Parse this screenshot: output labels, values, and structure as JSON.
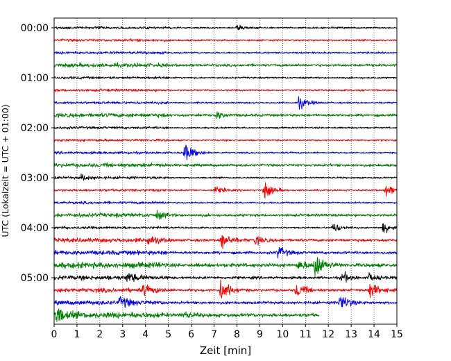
{
  "chart_data": {
    "type": "line",
    "title": "",
    "xlabel": "Zeit  [min]",
    "ylabel": "UTC (Lokalzeit = UTC + 01:00)",
    "xlim": [
      0,
      15
    ],
    "x_ticks": [
      "0",
      "1",
      "2",
      "3",
      "4",
      "5",
      "6",
      "7",
      "8",
      "9",
      "10",
      "11",
      "12",
      "13",
      "14",
      "15"
    ],
    "y_ticks": [
      "00:00",
      "01:00",
      "02:00",
      "03:00",
      "04:00",
      "05:00"
    ],
    "grid": "vertical dotted",
    "trace_interval_minutes": 15,
    "trace_colors": [
      "#000000",
      "#ff0000",
      "#0000ff",
      "#008000"
    ],
    "traces": [
      {
        "label": "00:00",
        "color": "#000000",
        "events": [
          {
            "t": 8.0,
            "amp": 3
          }
        ]
      },
      {
        "label": "00:15",
        "color": "#ff0000",
        "events": []
      },
      {
        "label": "00:30",
        "color": "#0000ff",
        "events": []
      },
      {
        "label": "00:45",
        "color": "#008000",
        "events": []
      },
      {
        "label": "01:00",
        "color": "#000000",
        "events": []
      },
      {
        "label": "01:15",
        "color": "#ff0000",
        "events": []
      },
      {
        "label": "01:30",
        "color": "#0000ff",
        "events": [
          {
            "t": 10.7,
            "amp": 8
          }
        ]
      },
      {
        "label": "01:45",
        "color": "#008000",
        "events": [
          {
            "t": 7.1,
            "amp": 4
          }
        ]
      },
      {
        "label": "02:00",
        "color": "#000000",
        "events": []
      },
      {
        "label": "02:15",
        "color": "#ff0000",
        "events": []
      },
      {
        "label": "02:30",
        "color": "#0000ff",
        "events": [
          {
            "t": 5.7,
            "amp": 12
          }
        ]
      },
      {
        "label": "02:45",
        "color": "#008000",
        "events": []
      },
      {
        "label": "03:00",
        "color": "#000000",
        "events": [
          {
            "t": 1.2,
            "amp": 3
          }
        ]
      },
      {
        "label": "03:15",
        "color": "#ff0000",
        "events": [
          {
            "t": 7.0,
            "amp": 5
          },
          {
            "t": 9.2,
            "amp": 10
          },
          {
            "t": 14.5,
            "amp": 7
          }
        ]
      },
      {
        "label": "03:30",
        "color": "#0000ff",
        "events": []
      },
      {
        "label": "03:45",
        "color": "#008000",
        "events": [
          {
            "t": 4.5,
            "amp": 3
          }
        ]
      },
      {
        "label": "04:00",
        "color": "#000000",
        "events": [
          {
            "t": 12.2,
            "amp": 6
          },
          {
            "t": 14.4,
            "amp": 8
          }
        ]
      },
      {
        "label": "04:15",
        "color": "#ff0000",
        "events": [
          {
            "t": 4.1,
            "amp": 5
          },
          {
            "t": 7.3,
            "amp": 11
          },
          {
            "t": 8.8,
            "amp": 5
          }
        ]
      },
      {
        "label": "04:30",
        "color": "#0000ff",
        "events": [
          {
            "t": 9.8,
            "amp": 7
          }
        ]
      },
      {
        "label": "04:45",
        "color": "#008000",
        "events": [
          {
            "t": 10.7,
            "amp": 5
          },
          {
            "t": 11.4,
            "amp": 16
          }
        ]
      },
      {
        "label": "05:00",
        "color": "#000000",
        "events": [
          {
            "t": 3.2,
            "amp": 5
          },
          {
            "t": 12.6,
            "amp": 6
          },
          {
            "t": 13.8,
            "amp": 4
          }
        ]
      },
      {
        "label": "05:15",
        "color": "#ff0000",
        "events": [
          {
            "t": 3.9,
            "amp": 5
          },
          {
            "t": 7.3,
            "amp": 14
          },
          {
            "t": 10.6,
            "amp": 9
          },
          {
            "t": 13.8,
            "amp": 9
          }
        ]
      },
      {
        "label": "05:30",
        "color": "#0000ff",
        "events": [
          {
            "t": 2.9,
            "amp": 7
          },
          {
            "t": 12.5,
            "amp": 11
          }
        ]
      },
      {
        "label": "05:45",
        "color": "#008000",
        "events": [
          {
            "t": 0.1,
            "amp": 9
          },
          {
            "t": 5.6,
            "amp": 4
          }
        ],
        "end_minute": 11.6
      }
    ]
  }
}
